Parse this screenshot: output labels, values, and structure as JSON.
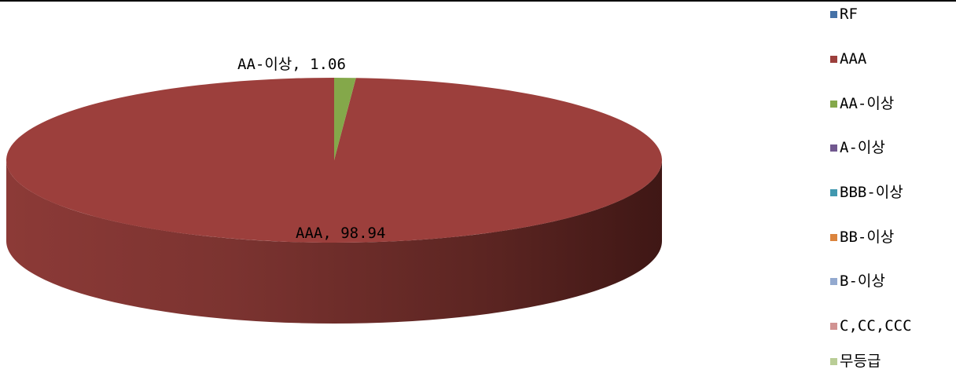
{
  "chart_data": {
    "type": "pie",
    "style": "3d",
    "series": [
      {
        "name": "",
        "slices": [
          {
            "category": "RF",
            "value": 0,
            "color": "#4572A7"
          },
          {
            "category": "AAA",
            "value": 98.94,
            "color": "#9C3F3C"
          },
          {
            "category": "AA-이상",
            "value": 1.06,
            "color": "#84A84A"
          },
          {
            "category": "A-이상",
            "value": 0,
            "color": "#71588F"
          },
          {
            "category": "BBB-이상",
            "value": 0,
            "color": "#4198AF"
          },
          {
            "category": "BB-이상",
            "value": 0,
            "color": "#DB843D"
          },
          {
            "category": "B-이상",
            "value": 0,
            "color": "#93A9CF"
          },
          {
            "category": "C,CC,CCC",
            "value": 0,
            "color": "#D19392"
          },
          {
            "category": "무등급",
            "value": 0,
            "color": "#B9CD96"
          }
        ]
      }
    ],
    "data_labels": [
      {
        "text": "AA-이상, 1.06"
      },
      {
        "text": "AAA, 98.94"
      }
    ],
    "legend_position": "right"
  }
}
